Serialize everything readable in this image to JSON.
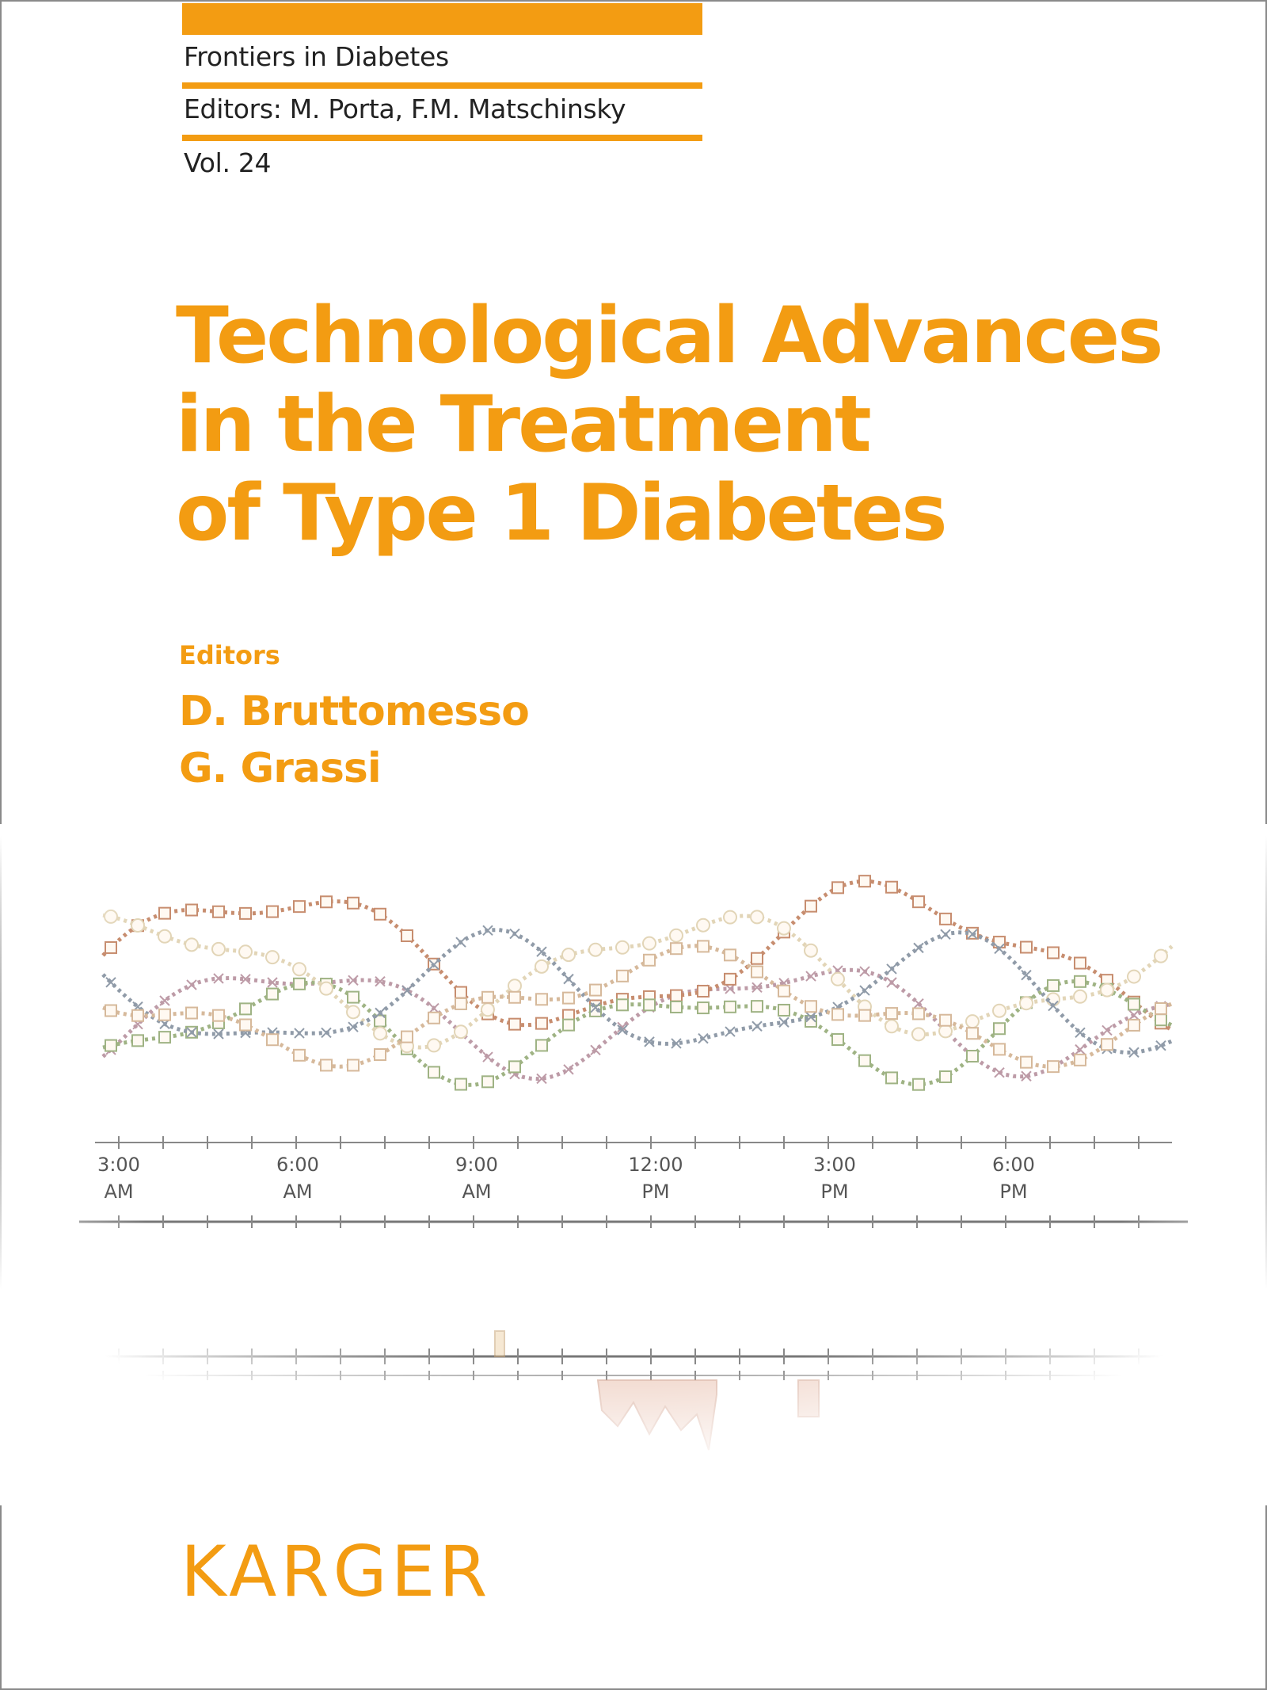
{
  "series": {
    "name": "Frontiers in Diabetes",
    "editors": "Editors: M. Porta, F.M. Matschinsky",
    "volume": "Vol. 24"
  },
  "book": {
    "title_lines": [
      "Technological Advances",
      "in the Treatment",
      "of Type 1 Diabetes"
    ]
  },
  "editors": {
    "label": "Editors",
    "names": [
      "D. Bruttomesso",
      "G. Grassi"
    ]
  },
  "artwork": {
    "time_labels": [
      {
        "time": "3:00",
        "period": "AM"
      },
      {
        "time": "6:00",
        "period": "AM"
      },
      {
        "time": "9:00",
        "period": "AM"
      },
      {
        "time": "12:00",
        "period": "PM"
      },
      {
        "time": "3:00",
        "period": "PM"
      },
      {
        "time": "6:00",
        "period": "PM"
      }
    ]
  },
  "publisher": "KARGER",
  "colors": {
    "accent": "#f39c12",
    "text": "#222222"
  }
}
